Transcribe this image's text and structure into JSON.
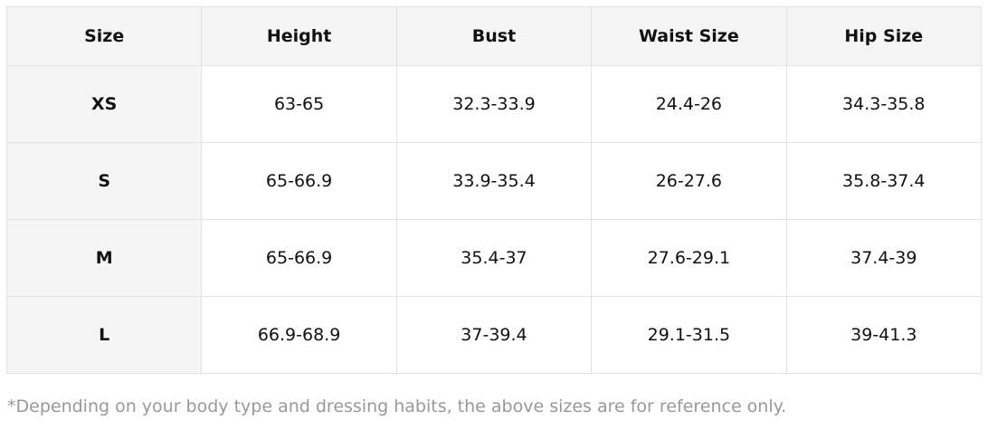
{
  "table": {
    "header": [
      "Size",
      "Height",
      "Bust",
      "Waist Size",
      "Hip Size"
    ],
    "rows": [
      [
        "XS",
        "63-65",
        "32.3-33.9",
        "24.4-26",
        "34.3-35.8"
      ],
      [
        "S",
        "65-66.9",
        "33.9-35.4",
        "26-27.6",
        "35.8-37.4"
      ],
      [
        "M",
        "65-66.9",
        "35.4-37",
        "27.6-29.1",
        "37.4-39"
      ],
      [
        "L",
        "66.9-68.9",
        "37-39.4",
        "29.1-31.5",
        "39-41.3"
      ]
    ]
  },
  "note": "*Depending on your body type and dressing habits, the above sizes are for reference only."
}
